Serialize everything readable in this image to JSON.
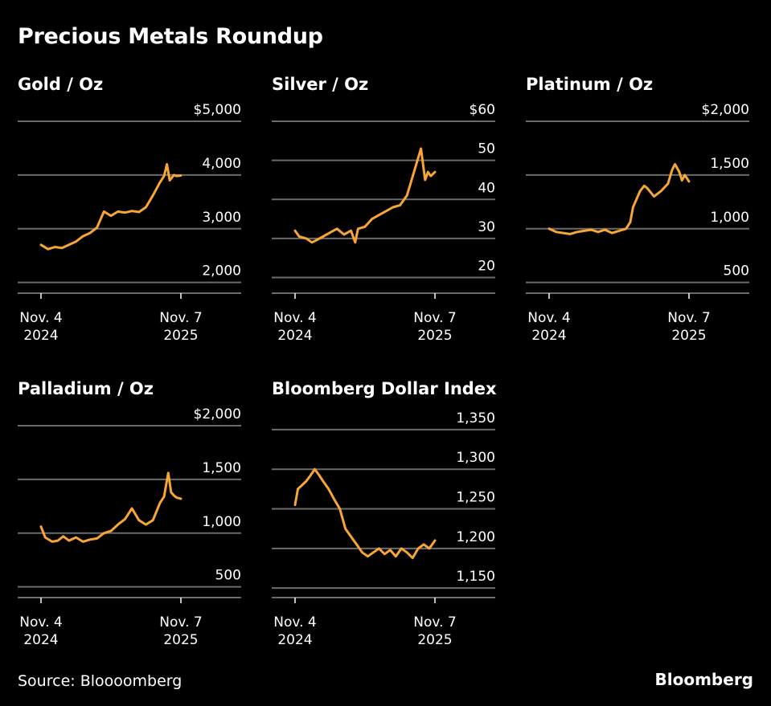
{
  "title": "Precious Metals Roundup",
  "source": "Source: Bloooomberg",
  "brand": "Bloomberg",
  "colors": {
    "line": "#f7a537",
    "grid": "#6b6b6b",
    "background": "#000000",
    "text": "#ffffff"
  },
  "chart_data": [
    {
      "type": "line",
      "title": "Gold / Oz",
      "ylim": [
        1800,
        5000
      ],
      "yticks": [
        2000,
        3000,
        4000,
        5000
      ],
      "ytick_labels": [
        "2,000",
        "3,000",
        "4,000",
        "$5,000"
      ],
      "xticks": [
        {
          "label1": "Nov. 4",
          "label2": "2024",
          "x": 0
        },
        {
          "label1": "Nov. 7",
          "label2": "2025",
          "x": 1
        }
      ],
      "series": [
        {
          "name": "Gold / Oz",
          "x": [
            0,
            0.05,
            0.1,
            0.15,
            0.2,
            0.25,
            0.3,
            0.35,
            0.4,
            0.45,
            0.5,
            0.55,
            0.6,
            0.65,
            0.7,
            0.75,
            0.8,
            0.85,
            0.88,
            0.9,
            0.92,
            0.95,
            0.97,
            1.0
          ],
          "values": [
            2700,
            2620,
            2660,
            2640,
            2700,
            2760,
            2860,
            2920,
            3020,
            3320,
            3240,
            3320,
            3300,
            3330,
            3310,
            3400,
            3620,
            3860,
            3980,
            4200,
            3900,
            4000,
            3980,
            3990
          ]
        }
      ]
    },
    {
      "type": "line",
      "title": "Silver / Oz",
      "ylim": [
        16,
        60
      ],
      "yticks": [
        20,
        30,
        40,
        50,
        60
      ],
      "ytick_labels": [
        "20",
        "30",
        "40",
        "50",
        "$60"
      ],
      "xticks": [
        {
          "label1": "Nov. 4",
          "label2": "2024",
          "x": 0
        },
        {
          "label1": "Nov. 7",
          "label2": "2025",
          "x": 1
        }
      ],
      "series": [
        {
          "name": "Silver / Oz",
          "x": [
            0,
            0.03,
            0.08,
            0.12,
            0.15,
            0.2,
            0.25,
            0.3,
            0.35,
            0.4,
            0.43,
            0.45,
            0.5,
            0.55,
            0.6,
            0.65,
            0.7,
            0.75,
            0.8,
            0.85,
            0.9,
            0.93,
            0.95,
            0.97,
            1.0
          ],
          "values": [
            32,
            30.5,
            30,
            29,
            29.5,
            30.5,
            31.5,
            32.5,
            31,
            32,
            29,
            32.5,
            33,
            35,
            36,
            37,
            38,
            38.5,
            41,
            47,
            53,
            45,
            47,
            46,
            47
          ]
        }
      ]
    },
    {
      "type": "line",
      "title": "Platinum / Oz",
      "ylim": [
        400,
        2000
      ],
      "yticks": [
        500,
        1000,
        1500,
        2000
      ],
      "ytick_labels": [
        "500",
        "1,000",
        "1,500",
        "$2,000"
      ],
      "xticks": [
        {
          "label1": "Nov. 4",
          "label2": "2024",
          "x": 0
        },
        {
          "label1": "Nov. 7",
          "label2": "2025",
          "x": 1
        }
      ],
      "series": [
        {
          "name": "Platinum / Oz",
          "x": [
            0,
            0.05,
            0.1,
            0.15,
            0.2,
            0.25,
            0.3,
            0.35,
            0.4,
            0.45,
            0.5,
            0.55,
            0.58,
            0.6,
            0.65,
            0.68,
            0.7,
            0.75,
            0.8,
            0.85,
            0.88,
            0.9,
            0.93,
            0.95,
            0.97,
            1.0
          ],
          "values": [
            1000,
            970,
            960,
            950,
            970,
            980,
            990,
            970,
            990,
            960,
            980,
            1000,
            1060,
            1200,
            1350,
            1400,
            1380,
            1300,
            1350,
            1420,
            1550,
            1600,
            1530,
            1450,
            1500,
            1440
          ]
        }
      ]
    },
    {
      "type": "line",
      "title": "Palladium / Oz",
      "ylim": [
        400,
        2000
      ],
      "yticks": [
        500,
        1000,
        1500,
        2000
      ],
      "ytick_labels": [
        "500",
        "1,000",
        "1,500",
        "$2,000"
      ],
      "xticks": [
        {
          "label1": "Nov. 4",
          "label2": "2024",
          "x": 0
        },
        {
          "label1": "Nov. 7",
          "label2": "2025",
          "x": 1
        }
      ],
      "series": [
        {
          "name": "Palladium / Oz",
          "x": [
            0,
            0.03,
            0.08,
            0.12,
            0.16,
            0.2,
            0.25,
            0.3,
            0.35,
            0.4,
            0.45,
            0.5,
            0.55,
            0.6,
            0.65,
            0.7,
            0.75,
            0.8,
            0.85,
            0.88,
            0.91,
            0.93,
            0.95,
            0.97,
            1.0
          ],
          "values": [
            1060,
            960,
            920,
            930,
            970,
            930,
            960,
            920,
            940,
            950,
            1000,
            1020,
            1080,
            1130,
            1230,
            1120,
            1080,
            1120,
            1280,
            1340,
            1560,
            1380,
            1350,
            1330,
            1320
          ]
        }
      ]
    },
    {
      "type": "line",
      "title": "Bloomberg Dollar Index",
      "ylim": [
        1138,
        1355
      ],
      "yticks": [
        1150,
        1200,
        1250,
        1300,
        1350
      ],
      "ytick_labels": [
        "1,150",
        "1,200",
        "1,250",
        "1,300",
        "1,350"
      ],
      "xticks": [
        {
          "label1": "Nov. 4",
          "label2": "2024",
          "x": 0
        },
        {
          "label1": "Nov. 7",
          "label2": "2025",
          "x": 1
        }
      ],
      "series": [
        {
          "name": "Bloomberg Dollar Index",
          "x": [
            0,
            0.02,
            0.05,
            0.08,
            0.11,
            0.14,
            0.17,
            0.2,
            0.24,
            0.28,
            0.32,
            0.36,
            0.4,
            0.44,
            0.48,
            0.52,
            0.56,
            0.6,
            0.64,
            0.68,
            0.72,
            0.76,
            0.8,
            0.84,
            0.88,
            0.92,
            0.96,
            1.0
          ],
          "values": [
            1255,
            1275,
            1280,
            1285,
            1292,
            1300,
            1293,
            1285,
            1275,
            1262,
            1250,
            1225,
            1215,
            1205,
            1195,
            1190,
            1195,
            1200,
            1193,
            1198,
            1190,
            1200,
            1195,
            1188,
            1200,
            1205,
            1200,
            1210
          ]
        }
      ]
    }
  ]
}
